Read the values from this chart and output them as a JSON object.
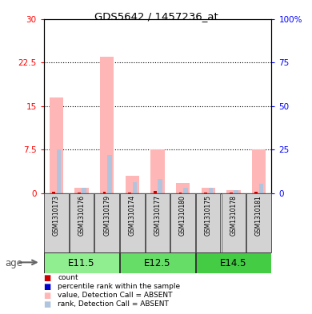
{
  "title": "GDS5642 / 1457236_at",
  "samples": [
    "GSM1310173",
    "GSM1310176",
    "GSM1310179",
    "GSM1310174",
    "GSM1310177",
    "GSM1310180",
    "GSM1310175",
    "GSM1310178",
    "GSM1310181"
  ],
  "pink_values": [
    16.5,
    0.9,
    23.5,
    3.0,
    7.5,
    1.7,
    0.9,
    0.5,
    7.5
  ],
  "blue_values": [
    25.0,
    3.0,
    22.0,
    6.5,
    8.0,
    3.0,
    3.0,
    1.5,
    5.5
  ],
  "red_values": [
    0.3,
    0.1,
    0.2,
    0.1,
    0.4,
    0.1,
    0.1,
    0.1,
    0.3
  ],
  "ylim_left": [
    0,
    30
  ],
  "ylim_right": [
    0,
    100
  ],
  "yticks_left": [
    0,
    7.5,
    15,
    22.5,
    30
  ],
  "yticks_left_labels": [
    "0",
    "7.5",
    "15",
    "22.5",
    "30"
  ],
  "yticks_right": [
    0,
    25,
    50,
    75,
    100
  ],
  "yticks_right_labels": [
    "0",
    "25",
    "50",
    "75",
    "100%"
  ],
  "group_labels": [
    "E11.5",
    "E12.5",
    "E14.5"
  ],
  "group_ranges": [
    [
      0,
      2
    ],
    [
      3,
      5
    ],
    [
      6,
      8
    ]
  ],
  "group_colors": [
    "#90EE90",
    "#66DD66",
    "#44CC44"
  ],
  "legend_colors": [
    "#cc0000",
    "#0000cc",
    "#ffb6b6",
    "#b0c4de"
  ],
  "legend_labels": [
    "count",
    "percentile rank within the sample",
    "value, Detection Call = ABSENT",
    "rank, Detection Call = ABSENT"
  ],
  "pink_color": "#ffb6b6",
  "blue_color": "#b0c4de",
  "red_color": "#cc0000",
  "dark_blue_color": "#0000cc"
}
